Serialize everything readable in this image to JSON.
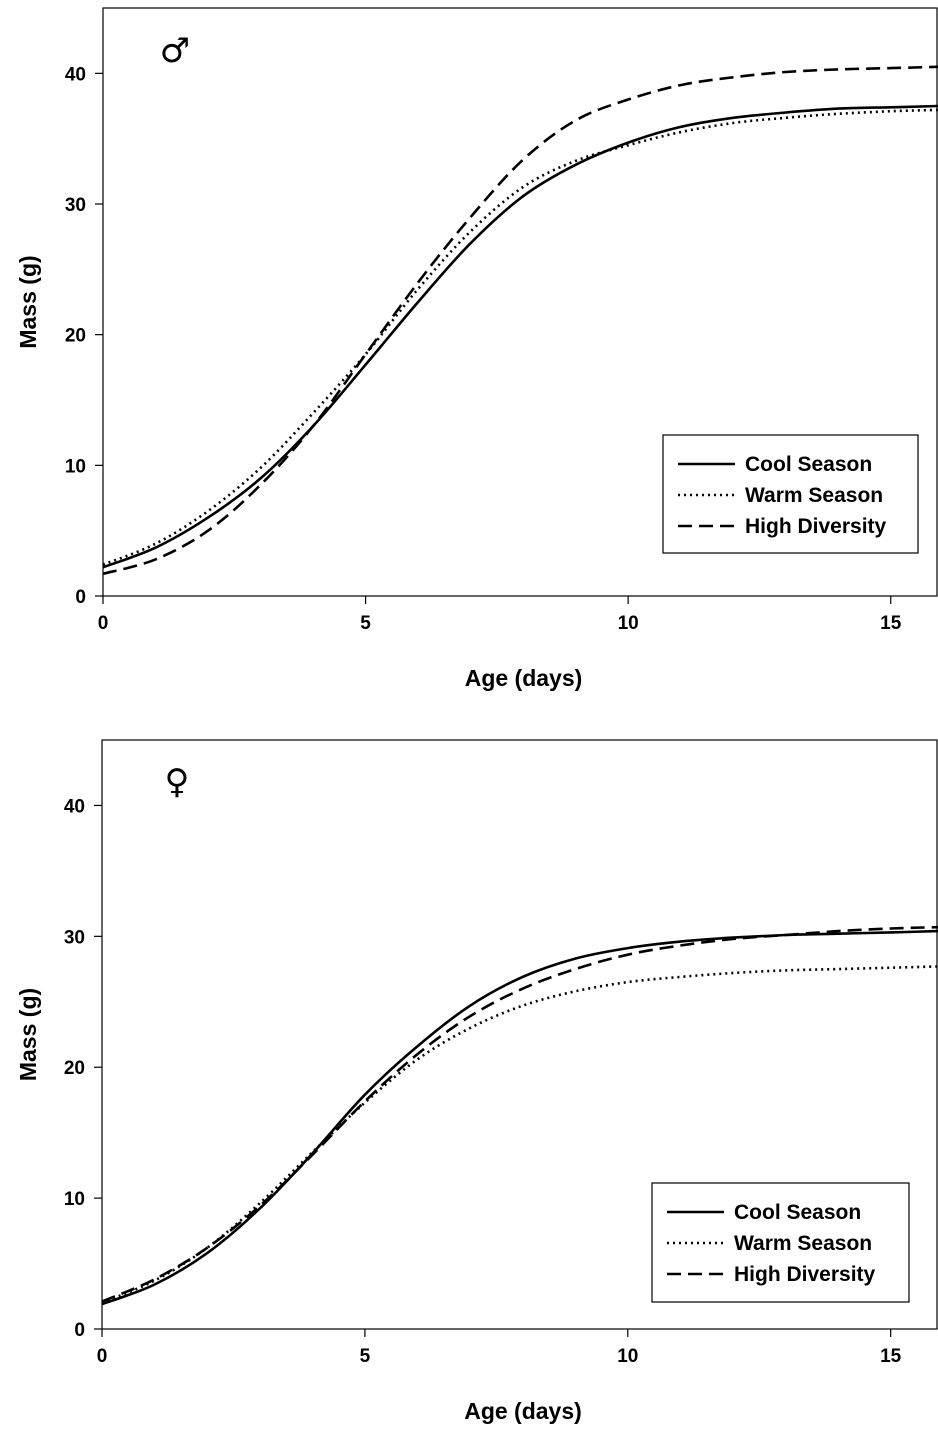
{
  "chart_data": [
    {
      "type": "line",
      "panel": "male",
      "symbol": "♂",
      "xlabel": "Age (days)",
      "ylabel": "Mass (g)",
      "xlim": [
        0,
        15.9
      ],
      "ylim": [
        0,
        45
      ],
      "xticks": [
        0,
        5,
        10,
        15
      ],
      "yticks": [
        0,
        10,
        20,
        30,
        40
      ],
      "legend_position": "bottom-right",
      "series": [
        {
          "name": "Cool Season",
          "style": "solid",
          "x": [
            0,
            1,
            2,
            3,
            4,
            5,
            6,
            7,
            8,
            9,
            10,
            11,
            12,
            13,
            14,
            15,
            15.9
          ],
          "y": [
            2.2,
            3.7,
            6.0,
            9.0,
            13.0,
            17.7,
            22.5,
            27.0,
            30.6,
            33.0,
            34.7,
            35.9,
            36.6,
            37.0,
            37.3,
            37.4,
            37.5
          ]
        },
        {
          "name": "Warm Season",
          "style": "dotted",
          "x": [
            0,
            1,
            2,
            3,
            4,
            5,
            6,
            7,
            8,
            9,
            10,
            11,
            12,
            13,
            14,
            15,
            15.9
          ],
          "y": [
            2.4,
            4.0,
            6.5,
            9.8,
            14.0,
            18.5,
            23.5,
            27.9,
            31.3,
            33.3,
            34.5,
            35.5,
            36.2,
            36.6,
            36.9,
            37.1,
            37.2
          ]
        },
        {
          "name": "High Diversity",
          "style": "dashed",
          "x": [
            0,
            1,
            2,
            3,
            4,
            5,
            6,
            7,
            8,
            9,
            10,
            11,
            12,
            13,
            14,
            15,
            15.9
          ],
          "y": [
            1.7,
            2.8,
            5.0,
            8.5,
            13.0,
            18.5,
            24.0,
            29.0,
            33.4,
            36.4,
            38.0,
            39.1,
            39.7,
            40.1,
            40.3,
            40.4,
            40.5
          ]
        }
      ]
    },
    {
      "type": "line",
      "panel": "female",
      "symbol": "♀",
      "xlabel": "Age (days)",
      "ylabel": "Mass (g)",
      "xlim": [
        0,
        15.9
      ],
      "ylim": [
        0,
        45
      ],
      "xticks": [
        0,
        5,
        10,
        15
      ],
      "yticks": [
        0,
        10,
        20,
        30,
        40
      ],
      "legend_position": "bottom-right",
      "series": [
        {
          "name": "Cool Season",
          "style": "solid",
          "x": [
            0,
            1,
            2,
            3,
            4,
            5,
            6,
            7,
            8,
            9,
            10,
            11,
            12,
            13,
            14,
            15,
            15.9
          ],
          "y": [
            1.9,
            3.4,
            5.8,
            9.2,
            13.4,
            17.9,
            21.6,
            24.7,
            26.9,
            28.3,
            29.1,
            29.6,
            29.9,
            30.1,
            30.2,
            30.3,
            30.4
          ]
        },
        {
          "name": "Warm Season",
          "style": "dotted",
          "x": [
            0,
            1,
            2,
            3,
            4,
            5,
            6,
            7,
            8,
            9,
            10,
            11,
            12,
            13,
            14,
            15,
            15.9
          ],
          "y": [
            2.0,
            3.7,
            6.2,
            9.6,
            13.5,
            17.3,
            20.6,
            23.0,
            24.7,
            25.8,
            26.5,
            26.9,
            27.2,
            27.4,
            27.5,
            27.6,
            27.7
          ]
        },
        {
          "name": "High Diversity",
          "style": "dashed",
          "x": [
            0,
            1,
            2,
            3,
            4,
            5,
            6,
            7,
            8,
            9,
            10,
            11,
            12,
            13,
            14,
            15,
            15.9
          ],
          "y": [
            2.1,
            3.8,
            6.2,
            9.4,
            13.3,
            17.4,
            21.0,
            23.9,
            26.0,
            27.5,
            28.6,
            29.3,
            29.8,
            30.1,
            30.4,
            30.6,
            30.7
          ]
        }
      ]
    }
  ]
}
